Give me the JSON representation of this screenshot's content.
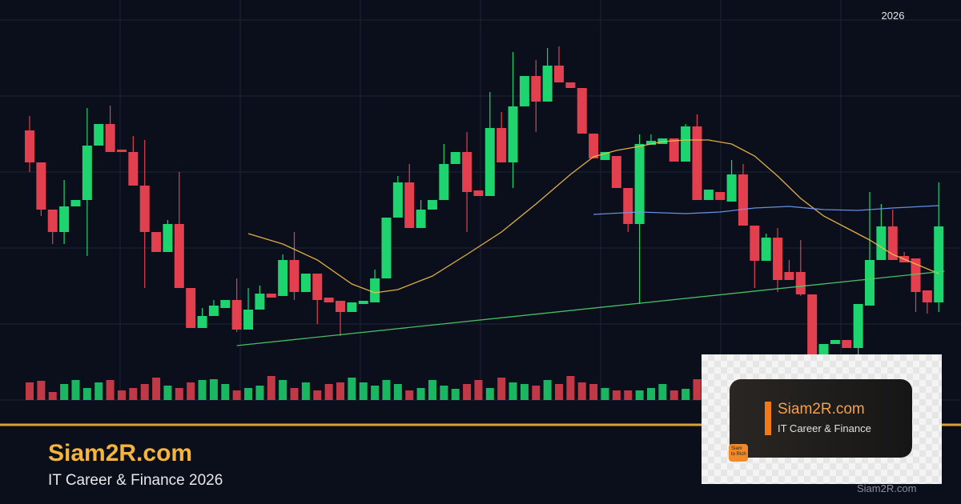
{
  "chart_data": {
    "type": "candlestick",
    "label": "2026",
    "ylim": [
      0,
      475
    ],
    "grid": true,
    "up_color": "#1ed46f",
    "down_color": "#e2404e",
    "ohlc": [
      [
        337,
        355,
        285,
        297
      ],
      [
        297,
        297,
        230,
        238
      ],
      [
        238,
        238,
        195,
        210
      ],
      [
        210,
        275,
        195,
        242
      ],
      [
        242,
        250,
        242,
        250
      ],
      [
        250,
        365,
        180,
        318
      ],
      [
        318,
        345,
        318,
        345
      ],
      [
        345,
        368,
        310,
        310
      ],
      [
        313,
        313,
        310,
        310
      ],
      [
        310,
        330,
        268,
        268
      ],
      [
        268,
        325,
        140,
        210
      ],
      [
        210,
        210,
        185,
        185
      ],
      [
        185,
        225,
        185,
        220
      ],
      [
        220,
        285,
        140,
        140
      ],
      [
        140,
        140,
        90,
        90
      ],
      [
        90,
        115,
        90,
        105
      ],
      [
        105,
        125,
        105,
        118
      ],
      [
        115,
        125,
        115,
        125
      ],
      [
        125,
        152,
        85,
        88
      ],
      [
        88,
        140,
        88,
        113
      ],
      [
        113,
        143,
        113,
        133
      ],
      [
        133,
        133,
        128,
        128
      ],
      [
        130,
        182,
        130,
        175
      ],
      [
        175,
        210,
        125,
        135
      ],
      [
        135,
        158,
        135,
        158
      ],
      [
        158,
        158,
        95,
        125
      ],
      [
        128,
        128,
        122,
        122
      ],
      [
        124,
        124,
        80,
        110
      ],
      [
        110,
        122,
        110,
        122
      ],
      [
        120,
        124,
        120,
        124
      ],
      [
        122,
        163,
        122,
        152
      ],
      [
        152,
        228,
        152,
        228
      ],
      [
        228,
        280,
        228,
        272
      ],
      [
        272,
        295,
        215,
        215
      ],
      [
        215,
        250,
        215,
        238
      ],
      [
        238,
        250,
        238,
        250
      ],
      [
        250,
        320,
        250,
        295
      ],
      [
        295,
        310,
        295,
        310
      ],
      [
        310,
        335,
        210,
        260
      ],
      [
        262,
        262,
        255,
        255
      ],
      [
        255,
        385,
        255,
        340
      ],
      [
        340,
        360,
        297,
        297
      ],
      [
        297,
        435,
        265,
        367
      ],
      [
        367,
        405,
        367,
        405
      ],
      [
        405,
        425,
        335,
        373
      ],
      [
        373,
        440,
        373,
        418
      ],
      [
        418,
        442,
        397,
        397
      ],
      [
        397,
        397,
        390,
        390
      ],
      [
        390,
        390,
        333,
        333
      ],
      [
        333,
        333,
        302,
        302
      ],
      [
        300,
        310,
        300,
        310
      ],
      [
        305,
        305,
        265,
        265
      ],
      [
        265,
        265,
        210,
        220
      ],
      [
        220,
        332,
        120,
        320
      ],
      [
        319,
        332,
        319,
        324
      ],
      [
        320,
        327,
        320,
        327
      ],
      [
        327,
        327,
        298,
        298
      ],
      [
        298,
        345,
        298,
        342
      ],
      [
        342,
        357,
        250,
        250
      ],
      [
        250,
        263,
        250,
        263
      ],
      [
        260,
        260,
        250,
        250
      ],
      [
        248,
        300,
        248,
        282
      ],
      [
        282,
        295,
        218,
        218
      ],
      [
        218,
        218,
        140,
        174
      ],
      [
        174,
        208,
        174,
        203
      ],
      [
        203,
        215,
        135,
        150
      ],
      [
        160,
        175,
        150,
        150
      ],
      [
        160,
        200,
        130,
        132
      ],
      [
        132,
        132,
        50,
        55
      ],
      [
        55,
        70,
        55,
        70
      ],
      [
        70,
        75,
        70,
        75
      ],
      [
        75,
        75,
        65,
        65
      ],
      [
        65,
        120,
        55,
        120
      ],
      [
        118,
        260,
        118,
        175
      ],
      [
        175,
        245,
        175,
        217
      ],
      [
        217,
        238,
        175,
        175
      ],
      [
        180,
        185,
        172,
        172
      ],
      [
        177,
        177,
        110,
        135
      ],
      [
        137,
        137,
        108,
        122
      ],
      [
        122,
        272,
        110,
        217
      ]
    ],
    "volume_lim": [
      0,
      100
    ],
    "volume": [
      22,
      24,
      10,
      20,
      25,
      15,
      22,
      25,
      12,
      15,
      20,
      28,
      18,
      15,
      22,
      25,
      26,
      20,
      12,
      15,
      18,
      30,
      25,
      15,
      22,
      12,
      20,
      22,
      28,
      22,
      18,
      25,
      20,
      12,
      15,
      25,
      18,
      14,
      20,
      25,
      15,
      28,
      22,
      20,
      18,
      25,
      20,
      30,
      22,
      20,
      15,
      12,
      12,
      12,
      15,
      20,
      12,
      14,
      26,
      null,
      null,
      null,
      null,
      null,
      null,
      null,
      null,
      null,
      null,
      null,
      null,
      null,
      null,
      null,
      null,
      null,
      null,
      null,
      null,
      null
    ],
    "overlays": [
      {
        "color": "#f5c04a",
        "x": [
          19,
          22,
          25,
          28,
          30,
          32,
          35,
          38,
          41,
          44,
          47,
          49,
          51,
          53,
          55,
          57,
          59,
          61,
          63,
          65,
          67,
          69,
          71,
          73,
          75,
          77,
          79
        ],
        "values": [
          208,
          195,
          175,
          145,
          134,
          138,
          155,
          182,
          210,
          245,
          282,
          304,
          312,
          317,
          323,
          325,
          325,
          320,
          305,
          280,
          252,
          230,
          215,
          200,
          182,
          170,
          158
        ]
      },
      {
        "color": "#6f9cf5",
        "x": [
          49,
          53,
          57,
          60,
          63,
          66,
          69,
          72,
          75,
          79
        ],
        "values": [
          232,
          235,
          233,
          235,
          240,
          242,
          238,
          237,
          240,
          243
        ]
      },
      {
        "color": "#4fcf6a",
        "x": [
          18,
          79.5
        ],
        "values": [
          68,
          161
        ]
      }
    ]
  },
  "footer": {
    "title": "Siam2R.com",
    "subtitle": "IT Career & Finance 2026",
    "watermark": "Siam2R.com"
  },
  "logo": {
    "title": "Siam2R.com",
    "subtitle": "IT Career & Finance",
    "badge": [
      "Siam",
      "to Rich"
    ]
  }
}
